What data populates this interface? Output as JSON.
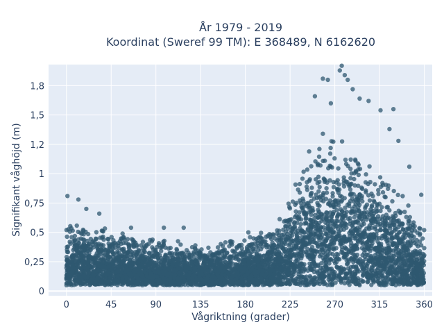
{
  "chart_data": {
    "type": "scatter",
    "title": [
      "År 1979 - 2019",
      "Koordinat (Sweref 99 TM): E 368489, N 6162620"
    ],
    "xlabel": "Vågriktning (grader)",
    "ylabel": "Signifikant våghöjd (m)",
    "xlim": [
      -18,
      368
    ],
    "ylim": [
      -0.04,
      1.93
    ],
    "x_ticks": [
      0,
      45,
      90,
      135,
      180,
      225,
      270,
      315,
      360
    ],
    "x_tick_labels": [
      "0",
      "45",
      "90",
      "135",
      "180",
      "225",
      "270",
      "315",
      "360"
    ],
    "y_ticks": [
      0,
      0.25,
      0.5,
      0.75,
      1,
      1.25,
      1.5,
      1.75
    ],
    "y_tick_labels": [
      "0",
      "0,25",
      "0,5",
      "0,75",
      "1",
      "1,2",
      "1,5",
      "1,8"
    ],
    "grid": true,
    "series": [
      {
        "marker_color": "#2f5870",
        "marker_opacity": 0.75,
        "description_points": "upper envelope of dense point cloud, by direction",
        "upper_envelope": {
          "x": [
            0,
            15,
            30,
            45,
            60,
            75,
            90,
            105,
            120,
            135,
            150,
            165,
            180,
            195,
            210,
            220,
            230,
            240,
            250,
            260,
            270,
            280,
            290,
            300,
            310,
            320,
            330,
            340,
            350,
            360
          ],
          "y": [
            0.56,
            0.6,
            0.56,
            0.52,
            0.48,
            0.46,
            0.44,
            0.42,
            0.4,
            0.4,
            0.41,
            0.43,
            0.45,
            0.5,
            0.54,
            0.66,
            0.92,
            1.12,
            1.28,
            1.32,
            1.3,
            1.26,
            1.2,
            1.12,
            1.02,
            0.96,
            0.88,
            0.8,
            0.68,
            0.56
          ]
        },
        "lower_envelope": 0.05,
        "outliers": [
          {
            "x": 1,
            "y": 0.81
          },
          {
            "x": 12,
            "y": 0.78
          },
          {
            "x": 20,
            "y": 0.7
          },
          {
            "x": 33,
            "y": 0.66
          },
          {
            "x": 65,
            "y": 0.54
          },
          {
            "x": 98,
            "y": 0.54
          },
          {
            "x": 118,
            "y": 0.54
          },
          {
            "x": 183,
            "y": 0.5
          },
          {
            "x": 250,
            "y": 1.66
          },
          {
            "x": 258,
            "y": 1.81
          },
          {
            "x": 263,
            "y": 1.8
          },
          {
            "x": 266,
            "y": 1.6
          },
          {
            "x": 275,
            "y": 1.88
          },
          {
            "x": 277,
            "y": 1.92
          },
          {
            "x": 280,
            "y": 1.84
          },
          {
            "x": 283,
            "y": 1.8
          },
          {
            "x": 288,
            "y": 1.72
          },
          {
            "x": 295,
            "y": 1.64
          },
          {
            "x": 304,
            "y": 1.62
          },
          {
            "x": 316,
            "y": 1.54
          },
          {
            "x": 329,
            "y": 1.55
          },
          {
            "x": 325,
            "y": 1.38
          },
          {
            "x": 334,
            "y": 1.28
          },
          {
            "x": 345,
            "y": 1.06
          },
          {
            "x": 357,
            "y": 0.82
          }
        ]
      }
    ]
  }
}
